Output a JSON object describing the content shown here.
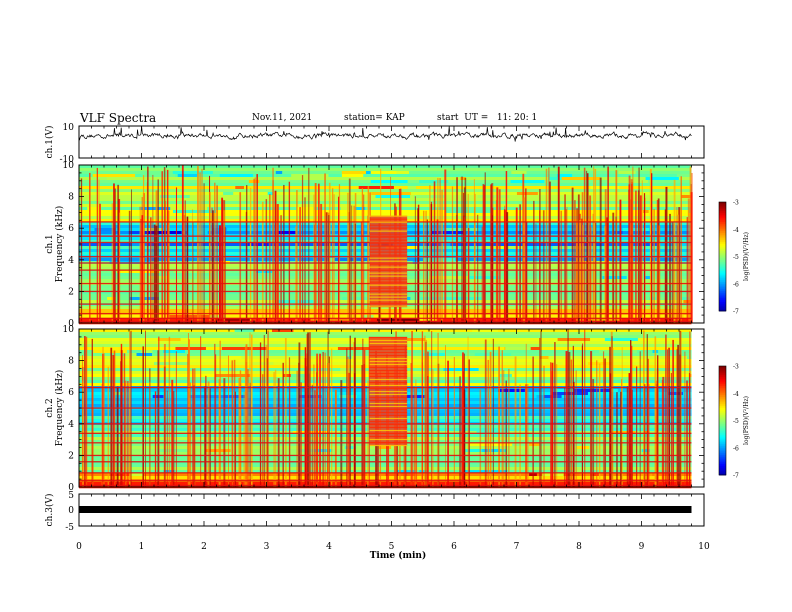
{
  "header": {
    "title": "VLF Spectra",
    "date": "Nov.11, 2021",
    "station": "station= KAP",
    "start": "start  UT =   11: 20: 1"
  },
  "chart_data": [
    {
      "type": "line",
      "panel": "ch1-waveform",
      "ylabel": "ch.1(V)",
      "ylim": [
        -10,
        10
      ],
      "y_ticks": [
        "10",
        "-10"
      ],
      "xlim": [
        0,
        10
      ],
      "color": "#000000",
      "mean": 4,
      "amplitude": 3,
      "x_end": 9.8
    },
    {
      "type": "heatmap",
      "panel": "ch1-spectrogram",
      "ylabel": "ch.1",
      "ylabel2": "Frequency  (kHz)",
      "ylim": [
        0,
        10
      ],
      "y_ticks": [
        0,
        2,
        4,
        6,
        8,
        10
      ],
      "xlim": [
        0,
        10
      ],
      "x_end": 9.8,
      "burst": {
        "t_start": 4.65,
        "t_end": 5.25,
        "f_low": 1.0,
        "f_high": 6.8
      },
      "strong_lines_khz": [
        0.1,
        0.3,
        0.6,
        1.2,
        2.0,
        2.5,
        3.35,
        3.8,
        4.2,
        5.1,
        5.5,
        6.4
      ],
      "colorbar": {
        "label": "log(PSD)(V²/Hz)",
        "ticks": [
          "-3",
          "-4",
          "-5",
          "-6",
          "-7"
        ],
        "range": [
          -7,
          -3
        ]
      }
    },
    {
      "type": "heatmap",
      "panel": "ch2-spectrogram",
      "ylabel": "ch.2",
      "ylabel2": "Frequency  (kHz)",
      "ylim": [
        0,
        10
      ],
      "y_ticks": [
        0,
        2,
        4,
        6,
        8,
        10
      ],
      "xlim": [
        0,
        10
      ],
      "x_end": 9.8,
      "burst": {
        "t_start": 4.65,
        "t_end": 5.25,
        "f_low": 2.6,
        "f_high": 9.5
      },
      "strong_lines_khz": [
        0.1,
        0.4,
        0.9,
        1.6,
        2.0,
        2.8,
        3.4,
        4.0,
        5.0,
        6.3
      ],
      "colorbar": {
        "label": "log(PSD)(V²/Hz)",
        "ticks": [
          "-3",
          "-4",
          "-5",
          "-6",
          "-7"
        ],
        "range": [
          -7,
          -3
        ]
      }
    },
    {
      "type": "line",
      "panel": "ch3-signal",
      "ylabel": "ch.3(V)",
      "ylim": [
        -5,
        5
      ],
      "y_ticks": [
        "5",
        "0",
        "-5"
      ],
      "xlim": [
        0,
        10
      ],
      "x_end": 9.8,
      "constant_value": 0,
      "color": "#000000"
    }
  ],
  "x_axis": {
    "label": "Time  (min)",
    "ticks": [
      "0",
      "1",
      "2",
      "3",
      "4",
      "5",
      "6",
      "7",
      "8",
      "9",
      "10"
    ]
  }
}
